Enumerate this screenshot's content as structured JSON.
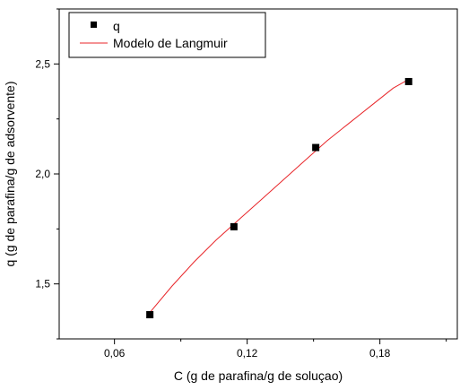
{
  "chart_data": {
    "type": "scatter",
    "title": "",
    "xlabel": "C (g de parafina/g de soluçao)",
    "ylabel": "q (g de parafina/g de adsorvente)",
    "xlim": [
      0.035,
      0.215
    ],
    "ylim": [
      1.25,
      2.75
    ],
    "x_ticks": [
      0.06,
      0.12,
      0.18
    ],
    "x_tick_labels": [
      "0,06",
      "0,12",
      "0,18"
    ],
    "y_ticks": [
      1.5,
      2.0,
      2.5
    ],
    "y_tick_labels": [
      "1,5",
      "2,0",
      "2,5"
    ],
    "grid": false,
    "legend_position": "top-left",
    "series": [
      {
        "name": "q",
        "kind": "scatter",
        "color": "#000000",
        "marker": "square",
        "x": [
          0.076,
          0.114,
          0.151,
          0.193
        ],
        "y": [
          1.36,
          1.76,
          2.12,
          2.42
        ]
      },
      {
        "name": "Modelo de Langmuir",
        "kind": "line",
        "color": "#e8262a",
        "x": [
          0.076,
          0.086,
          0.096,
          0.106,
          0.116,
          0.126,
          0.136,
          0.146,
          0.156,
          0.166,
          0.176,
          0.186,
          0.193
        ],
        "y": [
          1.37,
          1.49,
          1.6,
          1.7,
          1.79,
          1.88,
          1.97,
          2.06,
          2.15,
          2.23,
          2.31,
          2.39,
          2.43
        ]
      }
    ]
  }
}
